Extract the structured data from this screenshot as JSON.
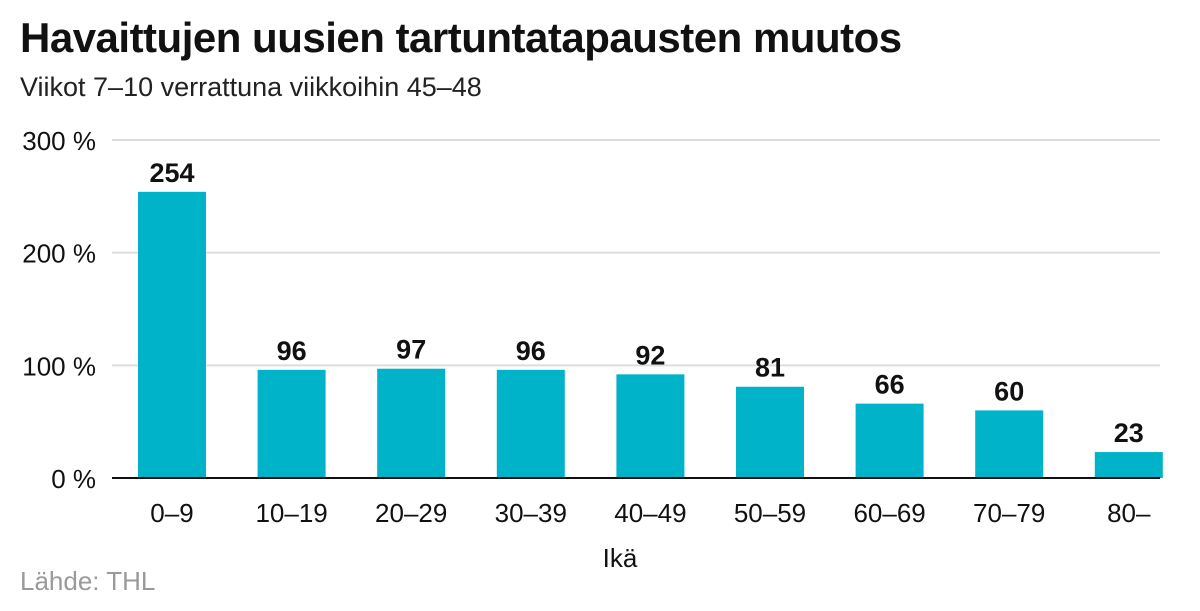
{
  "header": {
    "title": "Havaittujen uusien tartuntatapausten muutos",
    "subtitle": "Viikot 7–10 verrattuna viikkoihin 45–48"
  },
  "footer": {
    "source": "Lähde: THL"
  },
  "colors": {
    "bar": "#00b3c8",
    "gridline": "#dddddd",
    "baseline": "#111111"
  },
  "chart_data": {
    "type": "bar",
    "title": "Havaittujen uusien tartuntatapausten muutos",
    "subtitle": "Viikot 7–10 verrattuna viikkoihin 45–48",
    "xlabel": "Ikä",
    "ylabel": "",
    "categories": [
      "0–9",
      "10–19",
      "20–29",
      "30–39",
      "40–49",
      "50–59",
      "60–69",
      "70–79",
      "80–"
    ],
    "values": [
      254,
      96,
      97,
      96,
      92,
      81,
      66,
      60,
      23
    ],
    "ylim": [
      0,
      300
    ],
    "yticks": [
      0,
      100,
      200,
      300
    ],
    "ytick_labels": [
      "0 %",
      "100 %",
      "200 %",
      "300 %"
    ],
    "grid": true,
    "legend": "none"
  }
}
